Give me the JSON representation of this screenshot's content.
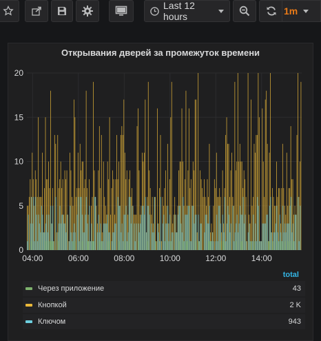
{
  "toolbar": {
    "time_range_label": "Last 12 hours",
    "refresh_interval": "1m"
  },
  "panel": {
    "title": "Открывания дверей за промежуток времени"
  },
  "legend": {
    "header": "total",
    "items": [
      {
        "name": "Через приложение",
        "value": "43",
        "color": "#7eb26d"
      },
      {
        "name": "Кнопкой",
        "value": "2 K",
        "color": "#eab839"
      },
      {
        "name": "Ключом",
        "value": "943",
        "color": "#6ed0e0"
      }
    ]
  },
  "chart_data": {
    "type": "bar",
    "title": "Открывания дверей за промежуток времени",
    "xlabel": "",
    "ylabel": "",
    "ylim": [
      0,
      20
    ],
    "y_ticks": [
      "0",
      "5",
      "10",
      "15",
      "20"
    ],
    "x_ticks": [
      "04:00",
      "06:00",
      "08:00",
      "10:00",
      "12:00",
      "14:00"
    ],
    "x_range_hours": [
      3.75,
      15.75
    ],
    "grid": true,
    "legend_position": "bottom",
    "series": [
      {
        "name": "Через приложение",
        "color": "#7eb26d",
        "total": 43,
        "typical_max": 1
      },
      {
        "name": "Кнопкой",
        "color": "#eab839",
        "total": 2000,
        "typical_max": 19
      },
      {
        "name": "Ключом",
        "color": "#6ed0e0",
        "total": 943,
        "typical_max": 6
      }
    ]
  }
}
